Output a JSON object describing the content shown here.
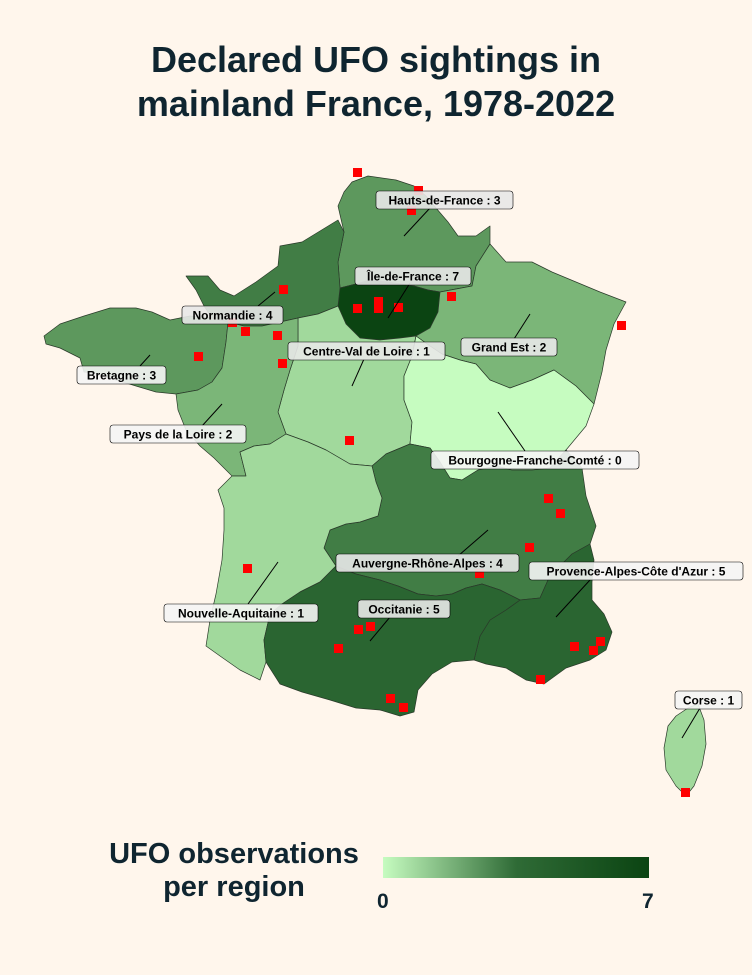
{
  "title": {
    "line1": "Declared UFO sightings in",
    "line2": "mainland France, 1978-2022"
  },
  "legend": {
    "title_line1": "UFO observations",
    "title_line2": "per region",
    "min": "0",
    "max": "7",
    "color_low": "#c6fcc0",
    "color_high": "#0b4412"
  },
  "point_color": "#ff0000",
  "regions": [
    {
      "name": "Hauts-de-France",
      "count": 3,
      "label": "Hauts-de-France : 3"
    },
    {
      "name": "Île-de-France",
      "count": 7,
      "label": "Île-de-France : 7"
    },
    {
      "name": "Normandie",
      "count": 4,
      "label": "Normandie : 4"
    },
    {
      "name": "Bretagne",
      "count": 3,
      "label": "Bretagne : 3"
    },
    {
      "name": "Centre-Val de Loire",
      "count": 1,
      "label": "Centre-Val de Loire : 1"
    },
    {
      "name": "Grand Est",
      "count": 2,
      "label": "Grand Est : 2"
    },
    {
      "name": "Pays de la Loire",
      "count": 2,
      "label": "Pays de la Loire : 2"
    },
    {
      "name": "Bourgogne-Franche-Comté",
      "count": 0,
      "label": "Bourgogne-Franche-Comté : 0"
    },
    {
      "name": "Auvergne-Rhône-Alpes",
      "count": 4,
      "label": "Auvergne-Rhône-Alpes : 4"
    },
    {
      "name": "Provence-Alpes-Côte d'Azur",
      "count": 5,
      "label": "Provence-Alpes-Côte d'Azur : 5"
    },
    {
      "name": "Nouvelle-Aquitaine",
      "count": 1,
      "label": "Nouvelle-Aquitaine : 1"
    },
    {
      "name": "Occitanie",
      "count": 5,
      "label": "Occitanie : 5"
    },
    {
      "name": "Corse",
      "count": 1,
      "label": "Corse : 1"
    }
  ]
}
